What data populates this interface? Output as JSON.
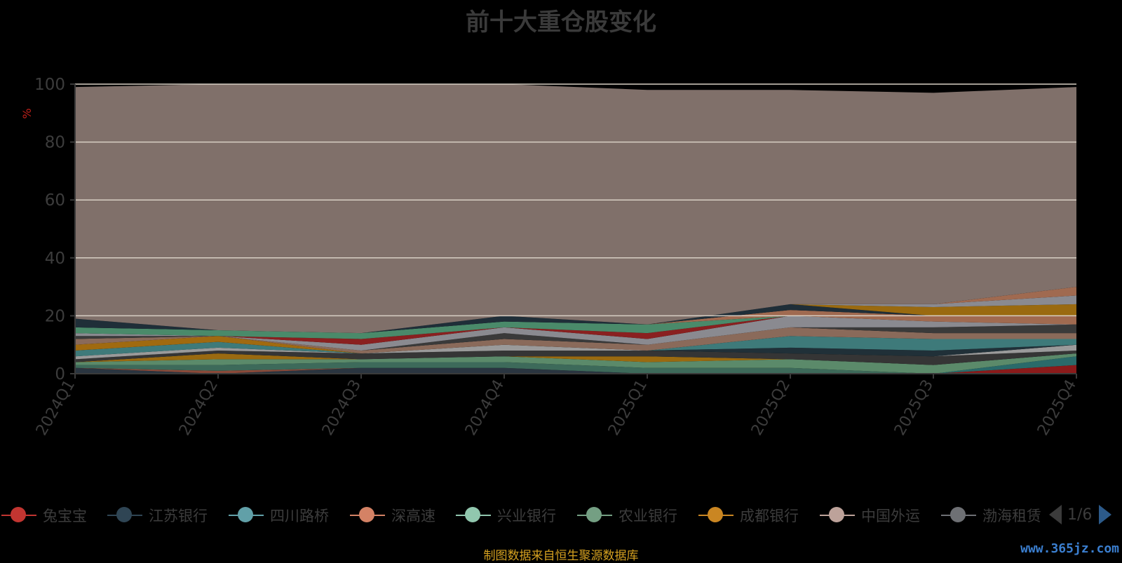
{
  "title": "前十大重仓股变化",
  "footer": "制图数据来自恒生聚源数据库",
  "watermark": "www.365jz.com",
  "legend_page": "1/6",
  "chart_data": {
    "type": "area",
    "stacked": true,
    "title": "前十大重仓股变化",
    "ylabel": "%",
    "ylim": [
      0,
      100
    ],
    "yticks": [
      0,
      20,
      40,
      60,
      80,
      100
    ],
    "categories": [
      "2024Q1",
      "2024Q2",
      "2024Q3",
      "2024Q4",
      "2025Q1",
      "2025Q2",
      "2025Q3",
      "2025Q4"
    ],
    "grid": true,
    "legend_position": "bottom",
    "legend": [
      "兔宝宝",
      "江苏银行",
      "四川路桥",
      "深高速",
      "兴业银行",
      "农业银行",
      "成都银行",
      "中国外运",
      "渤海租赁"
    ],
    "series": [
      {
        "color": "#2a3540",
        "values": [
          2.0,
          0.0,
          2.0,
          2.0,
          0.0,
          0.0,
          0.0,
          0.0
        ]
      },
      {
        "color": "#8a4a3a",
        "values": [
          0.0,
          1.0,
          0.0,
          0.0,
          0.0,
          0.0,
          0.0,
          0.0
        ]
      },
      {
        "color": "#3d6a5a",
        "values": [
          1.0,
          2.0,
          2.0,
          2.0,
          2.0,
          2.0,
          0.0,
          0.0
        ]
      },
      {
        "color": "#8b1a1a",
        "values": [
          0.0,
          0.0,
          0.0,
          0.0,
          0.0,
          0.0,
          0.0,
          3.0
        ]
      },
      {
        "color": "#2a6a6a",
        "values": [
          0.0,
          0.0,
          0.0,
          0.0,
          0.0,
          0.0,
          0.0,
          3.0
        ]
      },
      {
        "color": "#5b8a6a",
        "values": [
          1.0,
          2.0,
          1.0,
          2.0,
          2.0,
          3.0,
          3.0,
          1.0
        ]
      },
      {
        "color": "#9a6a10",
        "values": [
          0.0,
          2.0,
          0.0,
          0.0,
          2.0,
          0.0,
          0.0,
          0.0
        ]
      },
      {
        "color": "#353535",
        "values": [
          1.0,
          1.0,
          2.0,
          2.0,
          2.0,
          2.0,
          3.0,
          1.0
        ]
      },
      {
        "color": "#9a9a9a",
        "values": [
          1.0,
          1.0,
          0.0,
          2.0,
          0.0,
          0.0,
          0.0,
          2.0
        ]
      },
      {
        "color": "#203038",
        "values": [
          0.0,
          0.0,
          0.0,
          0.0,
          0.0,
          2.0,
          2.0,
          0.0
        ]
      },
      {
        "color": "#3e7a7a",
        "values": [
          2.0,
          2.0,
          0.0,
          0.0,
          0.0,
          4.0,
          4.0,
          2.0
        ]
      },
      {
        "color": "#a06a10",
        "values": [
          2.0,
          2.0,
          0.0,
          0.0,
          0.0,
          0.0,
          0.0,
          0.0
        ]
      },
      {
        "color": "#8a6a5a",
        "values": [
          2.0,
          0.0,
          1.0,
          2.0,
          2.0,
          3.0,
          2.0,
          2.0
        ]
      },
      {
        "color": "#3a3a3a",
        "values": [
          1.0,
          0.0,
          0.0,
          2.0,
          0.0,
          0.0,
          2.0,
          3.0
        ]
      },
      {
        "color": "#8a8a90",
        "values": [
          1.0,
          0.0,
          2.0,
          2.0,
          2.0,
          4.0,
          2.0,
          0.0
        ]
      },
      {
        "color": "#8a2020",
        "values": [
          0.0,
          0.0,
          2.0,
          0.0,
          2.0,
          0.0,
          0.0,
          0.0
        ]
      },
      {
        "color": "#4a8a6a",
        "values": [
          2.0,
          2.0,
          2.0,
          2.0,
          3.0,
          0.0,
          0.0,
          0.0
        ]
      },
      {
        "color": "#a06a50",
        "values": [
          0.0,
          0.0,
          0.0,
          0.0,
          0.0,
          2.0,
          2.0,
          3.0
        ]
      },
      {
        "color": "#1f2e38",
        "values": [
          3.0,
          0.0,
          0.0,
          2.0,
          0.0,
          2.0,
          0.0,
          0.0
        ]
      },
      {
        "color": "#9a6a10",
        "values": [
          0.0,
          0.0,
          0.0,
          0.0,
          0.0,
          0.0,
          3.0,
          4.0
        ]
      },
      {
        "color": "#8a8a90",
        "values": [
          0.0,
          0.0,
          0.0,
          0.0,
          0.0,
          0.0,
          1.0,
          3.0
        ]
      },
      {
        "color": "#a06a50",
        "values": [
          0.0,
          0.0,
          0.0,
          0.0,
          0.0,
          0.0,
          0.0,
          3.0
        ]
      },
      {
        "color": "#80706a",
        "values": [
          80.0,
          85.0,
          86.0,
          80.0,
          81.0,
          74.0,
          73.0,
          69.0
        ]
      }
    ]
  },
  "legend_items": [
    {
      "label": "兔宝宝",
      "color": "#c23531"
    },
    {
      "label": "江苏银行",
      "color": "#2f4554"
    },
    {
      "label": "四川路桥",
      "color": "#61a0a8"
    },
    {
      "label": "深高速",
      "color": "#d48265"
    },
    {
      "label": "兴业银行",
      "color": "#91c7ae"
    },
    {
      "label": "农业银行",
      "color": "#749f83"
    },
    {
      "label": "成都银行",
      "color": "#ca8622"
    },
    {
      "label": "中国外运",
      "color": "#bda29a"
    },
    {
      "label": "渤海租赁",
      "color": "#6e7074"
    }
  ]
}
